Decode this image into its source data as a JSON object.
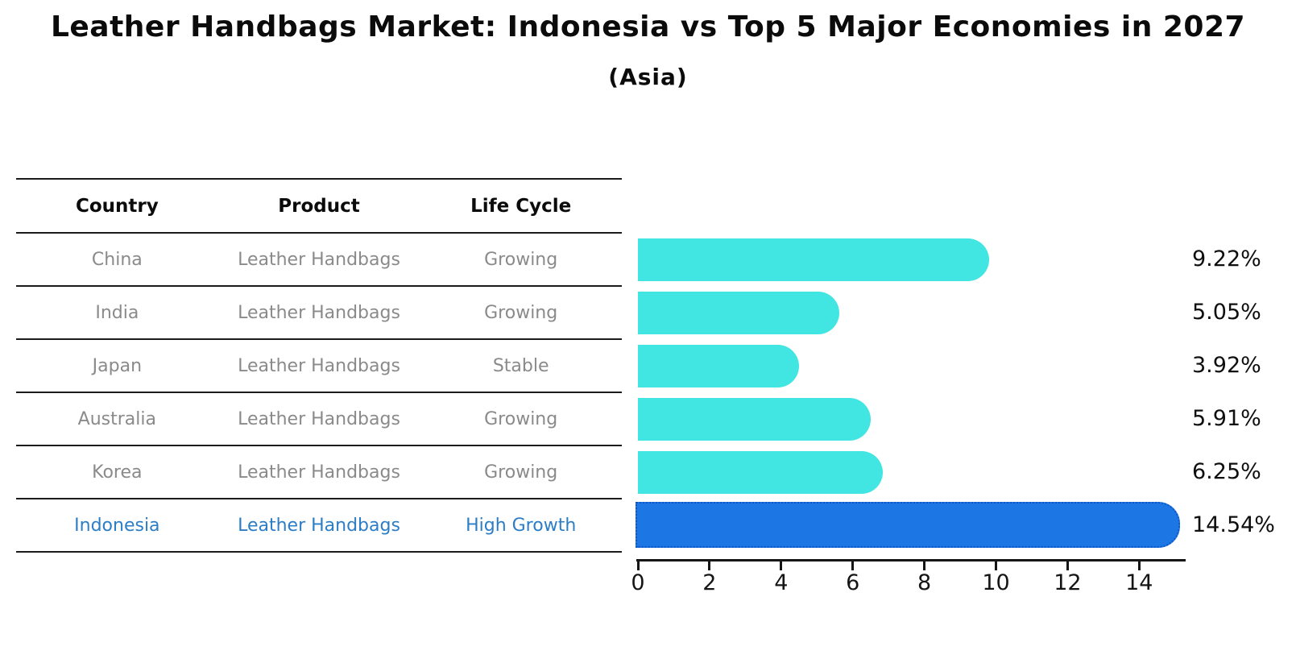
{
  "title": "Leather Handbags Market: Indonesia vs Top 5 Major Economies in 2027",
  "subtitle": "(Asia)",
  "table": {
    "headers": [
      "Country",
      "Product",
      "Life Cycle"
    ],
    "rows": [
      {
        "country": "China",
        "product": "Leather Handbags",
        "life_cycle": "Growing",
        "highlight": false
      },
      {
        "country": "India",
        "product": "Leather Handbags",
        "life_cycle": "Growing",
        "highlight": false
      },
      {
        "country": "Japan",
        "product": "Leather Handbags",
        "life_cycle": "Stable",
        "highlight": false
      },
      {
        "country": "Australia",
        "product": "Leather Handbags",
        "life_cycle": "Growing",
        "highlight": false
      },
      {
        "country": "Korea",
        "product": "Leather Handbags",
        "life_cycle": "Growing",
        "highlight": false
      },
      {
        "country": "Indonesia",
        "product": "Leather Handbags",
        "life_cycle": "High Growth",
        "highlight": true
      }
    ]
  },
  "chart_data": {
    "type": "bar",
    "orientation": "horizontal",
    "title": "Leather Handbags Market: Indonesia vs Top 5 Major Economies in 2027",
    "subtitle": "(Asia)",
    "categories": [
      "China",
      "India",
      "Japan",
      "Australia",
      "Korea",
      "Indonesia"
    ],
    "values": [
      9.22,
      5.05,
      3.92,
      5.91,
      6.25,
      14.54
    ],
    "value_labels": [
      "9.22%",
      "5.05%",
      "3.92%",
      "5.91%",
      "6.25%",
      "14.54%"
    ],
    "x_ticks": [
      0,
      2,
      4,
      6,
      8,
      10,
      12,
      14
    ],
    "xlim": [
      0,
      15.27
    ],
    "grid": false,
    "legend": false,
    "bar_color": "#41E5E1",
    "highlight": {
      "index": 5,
      "category": "Indonesia",
      "fill": "#1C77E4",
      "border": "#0D55C8",
      "border_style": "dotted"
    },
    "text_colors": {
      "row_text": "#8a8a8a",
      "highlight_row_text": "#2b7dc7",
      "value_label": "#0f0f0f"
    }
  }
}
